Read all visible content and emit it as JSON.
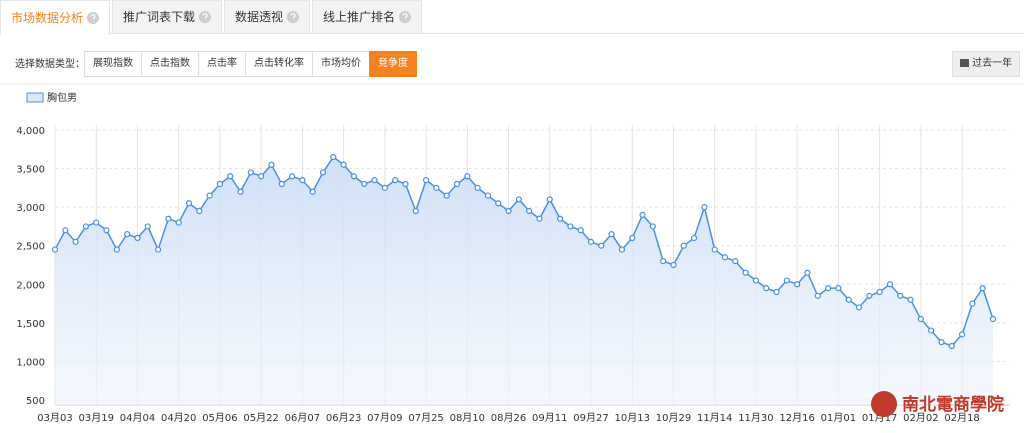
{
  "tabs": [
    "市场数据分析",
    "推广词表下载",
    "数据透视",
    "线上推广排名"
  ],
  "filter": {
    "label": "选择数据类型：",
    "options": [
      "展现指数",
      "点击指数",
      "点击率",
      "点击转化率",
      "市场均价",
      "竞争度"
    ],
    "period": "过去一年"
  },
  "watermark": "南北電商學院",
  "chart_data": {
    "type": "line",
    "categories": [
      "03月03",
      null,
      null,
      null,
      "03月19",
      null,
      null,
      null,
      "04月04",
      null,
      null,
      null,
      "04月20",
      null,
      null,
      null,
      "05月06",
      null,
      null,
      null,
      "05月22",
      null,
      null,
      null,
      "06月07",
      null,
      null,
      null,
      "06月23",
      null,
      null,
      null,
      "07月09",
      null,
      null,
      null,
      "07月25",
      null,
      null,
      null,
      "08月10",
      null,
      null,
      null,
      "08月26",
      null,
      null,
      null,
      "09月11",
      null,
      null,
      null,
      "09月27",
      null,
      null,
      null,
      "10月13",
      null,
      null,
      null,
      "10月29",
      null,
      null,
      null,
      "11月14",
      null,
      null,
      null,
      "11月30",
      null,
      null,
      null,
      "12月16",
      null,
      null,
      null,
      "01月01",
      null,
      null,
      null,
      "01月17",
      null,
      null,
      null,
      "02月02",
      null,
      null,
      null,
      "02月18",
      null,
      null,
      null
    ],
    "series": [
      {
        "name": "胸包男",
        "color": "#4a90e2",
        "values": [
          2450,
          2700,
          2550,
          2750,
          2800,
          2700,
          2450,
          2650,
          2600,
          2750,
          2450,
          2850,
          2800,
          3050,
          2950,
          3150,
          3300,
          3400,
          3200,
          3450,
          3400,
          3550,
          3300,
          3400,
          3350,
          3200,
          3450,
          3650,
          3550,
          3400,
          3300,
          3350,
          3250,
          3350,
          3300,
          2950,
          3350,
          3250,
          3150,
          3300,
          3400,
          3250,
          3150,
          3050,
          2950,
          3100,
          2950,
          2850,
          3100,
          2850,
          2750,
          2700,
          2550,
          2500,
          2650,
          2450,
          2600,
          2900,
          2750,
          2300,
          2250,
          2500,
          2600,
          3000,
          2450,
          2350,
          2300,
          2150,
          2050,
          1950,
          1900,
          2050,
          2000,
          2150,
          1850,
          1950,
          1950,
          1800,
          1700,
          1850,
          1900,
          2000,
          1850,
          1800,
          1550,
          1400,
          1250,
          1200,
          1350,
          1750,
          1950,
          1550
        ]
      }
    ],
    "ylim": [
      500,
      4000
    ],
    "yticks": [
      500,
      {
        "value": 1000,
        "label": "1,000"
      },
      {
        "value": 1500,
        "label": "1,500"
      },
      {
        "value": 2000,
        "label": "2,000"
      },
      {
        "value": 2500,
        "label": "2,500"
      },
      {
        "value": 3000,
        "label": "3,000"
      },
      {
        "value": 3500,
        "label": "3,500"
      },
      {
        "value": 4000,
        "label": "4,000"
      }
    ],
    "grid": true
  }
}
